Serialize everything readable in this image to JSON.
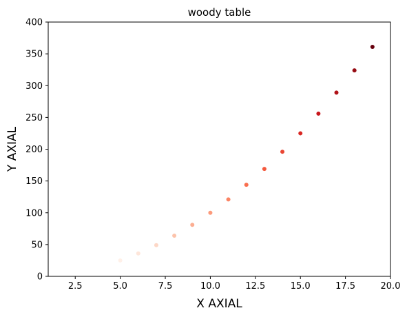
{
  "chart_data": {
    "type": "scatter",
    "title": "woody table",
    "xlabel": "X AXIAL",
    "ylabel": "Y AXIAL",
    "xlim": [
      1.0,
      20.0
    ],
    "ylim": [
      0,
      400
    ],
    "xticks": [
      2.5,
      5.0,
      7.5,
      10.0,
      12.5,
      15.0,
      17.5,
      20.0
    ],
    "xtick_labels": [
      "2.5",
      "5.0",
      "7.5",
      "10.0",
      "12.5",
      "15.0",
      "17.5",
      "20.0"
    ],
    "yticks": [
      0,
      50,
      100,
      150,
      200,
      250,
      300,
      350,
      400
    ],
    "ytick_labels": [
      "0",
      "50",
      "100",
      "150",
      "200",
      "250",
      "300",
      "350",
      "400"
    ],
    "grid": false,
    "colormap": "Reds",
    "points": [
      {
        "x": 5,
        "y": 25,
        "color": "#fff0e8"
      },
      {
        "x": 6,
        "y": 36,
        "color": "#fee6da"
      },
      {
        "x": 7,
        "y": 49,
        "color": "#fdd7c6"
      },
      {
        "x": 8,
        "y": 64,
        "color": "#fcc3ab"
      },
      {
        "x": 9,
        "y": 81,
        "color": "#fcae92"
      },
      {
        "x": 10,
        "y": 100,
        "color": "#fc9a7b"
      },
      {
        "x": 11,
        "y": 121,
        "color": "#fb8464"
      },
      {
        "x": 12,
        "y": 144,
        "color": "#f96e4e"
      },
      {
        "x": 13,
        "y": 169,
        "color": "#f4593d"
      },
      {
        "x": 14,
        "y": 196,
        "color": "#e94532"
      },
      {
        "x": 15,
        "y": 225,
        "color": "#d92723"
      },
      {
        "x": 16,
        "y": 256,
        "color": "#c8171c"
      },
      {
        "x": 17,
        "y": 289,
        "color": "#b01217"
      },
      {
        "x": 18,
        "y": 324,
        "color": "#960b13"
      },
      {
        "x": 19,
        "y": 361,
        "color": "#67000d"
      }
    ]
  }
}
